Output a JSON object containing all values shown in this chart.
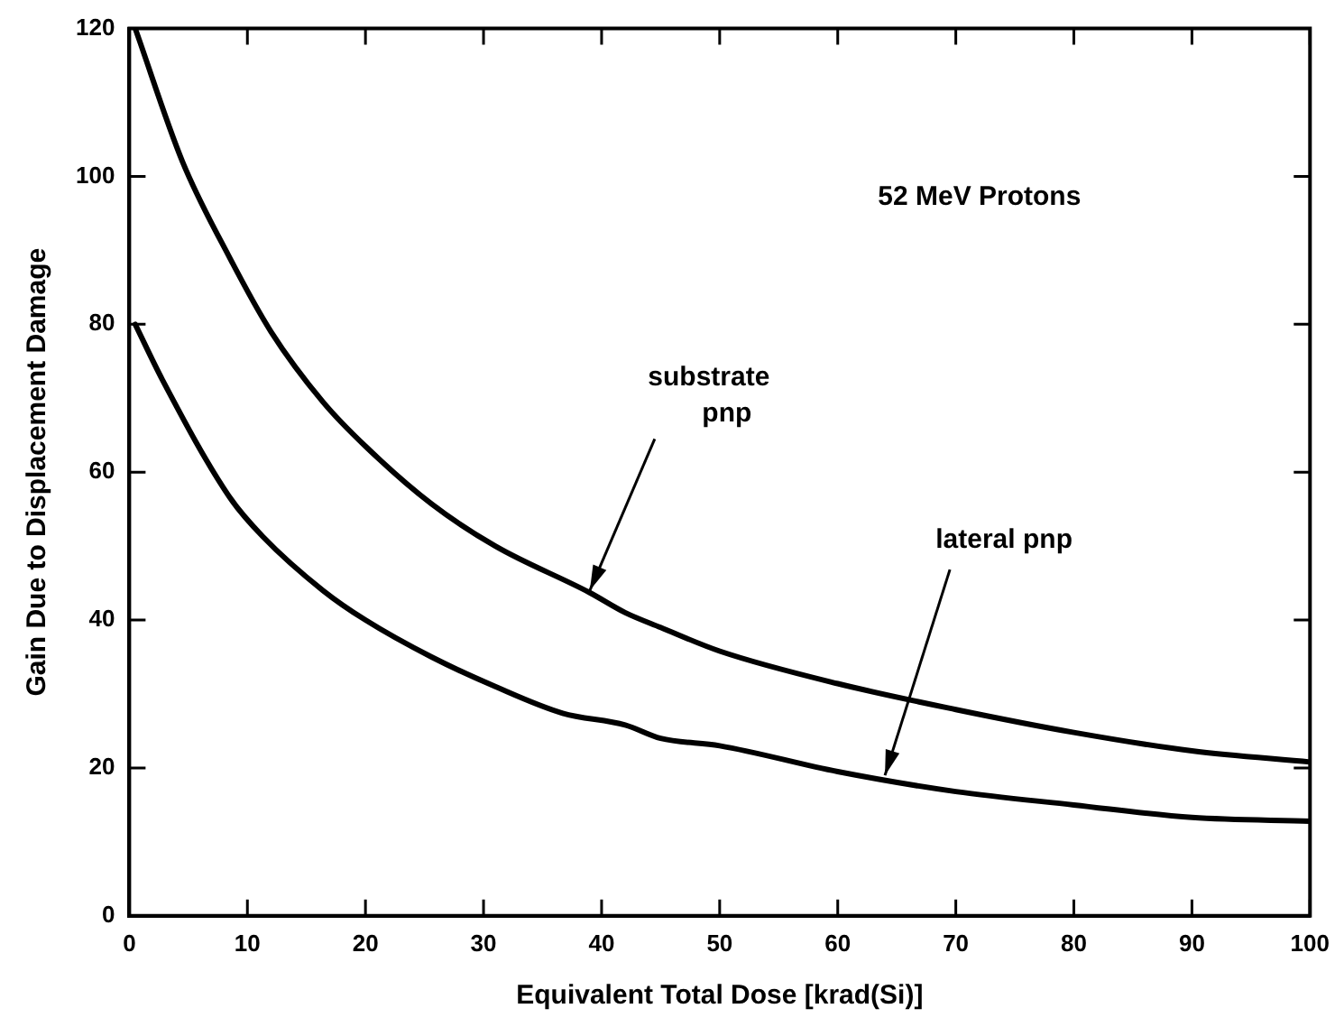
{
  "chart_data": {
    "type": "line",
    "xlabel": "Equivalent Total Dose [krad(Si)]",
    "ylabel": "Gain Due to Displacement Damage",
    "xlim": [
      0,
      100
    ],
    "xticks": [
      0,
      10,
      20,
      30,
      40,
      50,
      60,
      70,
      80,
      90,
      100
    ],
    "ylim": [
      0,
      120
    ],
    "yticks": [
      0,
      20,
      40,
      60,
      80,
      100,
      120
    ],
    "marker": "none",
    "line_style": "solid",
    "annotations": [
      "52 MeV Protons",
      {
        "text": "substrate pnp",
        "x": 39,
        "y": 44
      },
      {
        "text": "lateral pnp",
        "x": 64,
        "y": 19
      }
    ],
    "series": [
      {
        "color": "#000000",
        "x": [
          0.5,
          4.5,
          8.5,
          12,
          16.4,
          20,
          25.6,
          31,
          39,
          42,
          45,
          50,
          60,
          70,
          80,
          90,
          100
        ],
        "values": [
          120,
          102,
          89,
          79,
          69.5,
          63.5,
          55.7,
          50,
          43.7,
          41,
          39,
          35.8,
          31.4,
          27.9,
          24.8,
          22.3,
          20.8
        ]
      },
      {
        "color": "#000000",
        "x": [
          0.5,
          2.8,
          8.5,
          11.3,
          16.4,
          20,
          25.6,
          31,
          36.7,
          42,
          45,
          50,
          60,
          70,
          80,
          90,
          100
        ],
        "values": [
          80,
          72.5,
          56.6,
          51.3,
          44,
          40,
          35,
          31,
          27.4,
          25.8,
          24,
          23,
          19.5,
          16.8,
          15,
          13.3,
          12.8
        ]
      }
    ]
  }
}
